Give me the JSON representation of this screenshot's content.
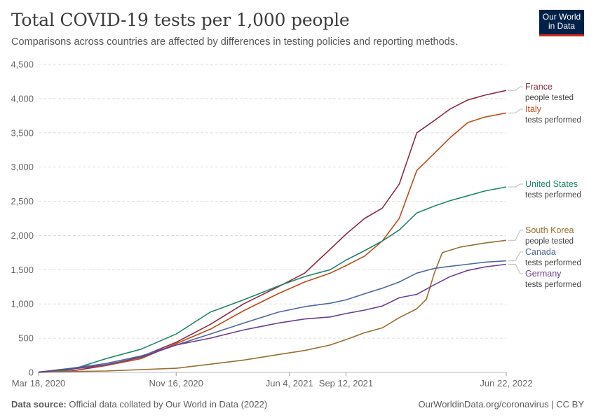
{
  "header": {
    "title": "Total COVID-19 tests per 1,000 people",
    "subtitle": "Comparisons across countries are affected by differences in testing policies and reporting methods."
  },
  "logo": {
    "line1": "Our World",
    "line2": "in Data",
    "bg": "#002147",
    "accent": "#ce261e"
  },
  "footer": {
    "source_label": "Data source:",
    "source_text": "Official data collated by Our World in Data (2022)",
    "credit": "OurWorldinData.org/coronavirus | CC BY"
  },
  "chart_data": {
    "type": "line",
    "xlabel": "",
    "ylabel": "",
    "ylim": [
      0,
      4500
    ],
    "yticks": [
      0,
      500,
      1000,
      1500,
      2000,
      2500,
      3000,
      3500,
      4000,
      4500
    ],
    "ytick_labels": [
      "0",
      "500",
      "1,000",
      "1,500",
      "2,000",
      "2,500",
      "3,000",
      "3,500",
      "4,000",
      "4,500"
    ],
    "xlim": [
      "2020-03-18",
      "2022-06-22"
    ],
    "xticks": [
      "2020-03-18",
      "2020-11-16",
      "2021-06-04",
      "2021-09-12",
      "2022-06-22"
    ],
    "xtick_labels": [
      "Mar 18, 2020",
      "Nov 16, 2020",
      "Jun 4, 2021",
      "Sep 12, 2021",
      "Jun 22, 2022"
    ],
    "grid": "horizontal dashed",
    "legend": "right, end labels",
    "series": [
      {
        "name": "France",
        "note": "people tested",
        "color": "#8c2c44",
        "points": [
          [
            "2020-03-18",
            0
          ],
          [
            "2020-05-15",
            20
          ],
          [
            "2020-07-15",
            100
          ],
          [
            "2020-09-15",
            230
          ],
          [
            "2020-11-16",
            440
          ],
          [
            "2021-01-15",
            700
          ],
          [
            "2021-03-15",
            1000
          ],
          [
            "2021-05-15",
            1250
          ],
          [
            "2021-07-01",
            1450
          ],
          [
            "2021-08-15",
            1800
          ],
          [
            "2021-09-12",
            2020
          ],
          [
            "2021-10-15",
            2250
          ],
          [
            "2021-11-15",
            2400
          ],
          [
            "2021-12-15",
            2750
          ],
          [
            "2022-01-15",
            3500
          ],
          [
            "2022-02-15",
            3680
          ],
          [
            "2022-03-15",
            3850
          ],
          [
            "2022-04-15",
            3980
          ],
          [
            "2022-05-15",
            4050
          ],
          [
            "2022-06-22",
            4120
          ]
        ]
      },
      {
        "name": "Italy",
        "note": "tests performed",
        "color": "#be4a15",
        "points": [
          [
            "2020-03-18",
            5
          ],
          [
            "2020-05-15",
            50
          ],
          [
            "2020-07-15",
            100
          ],
          [
            "2020-09-15",
            200
          ],
          [
            "2020-11-16",
            420
          ],
          [
            "2021-01-15",
            630
          ],
          [
            "2021-03-15",
            900
          ],
          [
            "2021-05-15",
            1150
          ],
          [
            "2021-07-01",
            1320
          ],
          [
            "2021-08-15",
            1450
          ],
          [
            "2021-09-12",
            1560
          ],
          [
            "2021-10-15",
            1700
          ],
          [
            "2021-11-15",
            1920
          ],
          [
            "2021-12-15",
            2250
          ],
          [
            "2022-01-15",
            2950
          ],
          [
            "2022-02-15",
            3200
          ],
          [
            "2022-03-15",
            3430
          ],
          [
            "2022-04-15",
            3650
          ],
          [
            "2022-05-15",
            3730
          ],
          [
            "2022-06-22",
            3790
          ]
        ]
      },
      {
        "name": "United States",
        "note": "tests performed",
        "color": "#1f8567",
        "points": [
          [
            "2020-03-18",
            0
          ],
          [
            "2020-05-15",
            40
          ],
          [
            "2020-07-15",
            200
          ],
          [
            "2020-09-15",
            340
          ],
          [
            "2020-11-16",
            560
          ],
          [
            "2021-01-15",
            880
          ],
          [
            "2021-03-15",
            1060
          ],
          [
            "2021-05-15",
            1260
          ],
          [
            "2021-07-01",
            1400
          ],
          [
            "2021-08-15",
            1500
          ],
          [
            "2021-09-12",
            1640
          ],
          [
            "2021-10-15",
            1780
          ],
          [
            "2021-11-15",
            1920
          ],
          [
            "2021-12-15",
            2080
          ],
          [
            "2022-01-15",
            2330
          ],
          [
            "2022-02-15",
            2430
          ],
          [
            "2022-03-15",
            2510
          ],
          [
            "2022-04-15",
            2580
          ],
          [
            "2022-05-15",
            2650
          ],
          [
            "2022-06-22",
            2710
          ]
        ]
      },
      {
        "name": "South Korea",
        "note": "people tested",
        "color": "#9b6d30",
        "points": [
          [
            "2020-03-18",
            5
          ],
          [
            "2020-07-15",
            20
          ],
          [
            "2020-11-16",
            60
          ],
          [
            "2021-01-15",
            120
          ],
          [
            "2021-03-15",
            180
          ],
          [
            "2021-05-15",
            260
          ],
          [
            "2021-07-01",
            320
          ],
          [
            "2021-08-15",
            400
          ],
          [
            "2021-09-12",
            480
          ],
          [
            "2021-10-15",
            580
          ],
          [
            "2021-11-15",
            650
          ],
          [
            "2021-12-15",
            800
          ],
          [
            "2022-01-15",
            930
          ],
          [
            "2022-02-01",
            1070
          ],
          [
            "2022-02-15",
            1450
          ],
          [
            "2022-03-01",
            1750
          ],
          [
            "2022-04-01",
            1830
          ],
          [
            "2022-05-15",
            1890
          ],
          [
            "2022-06-22",
            1930
          ]
        ]
      },
      {
        "name": "Canada",
        "note": "tests performed",
        "color": "#4c6a9c",
        "points": [
          [
            "2020-03-18",
            5
          ],
          [
            "2020-05-15",
            60
          ],
          [
            "2020-07-15",
            130
          ],
          [
            "2020-09-15",
            240
          ],
          [
            "2020-11-16",
            400
          ],
          [
            "2021-01-15",
            560
          ],
          [
            "2021-03-15",
            720
          ],
          [
            "2021-05-15",
            880
          ],
          [
            "2021-07-01",
            960
          ],
          [
            "2021-08-15",
            1010
          ],
          [
            "2021-09-12",
            1060
          ],
          [
            "2021-10-15",
            1150
          ],
          [
            "2021-11-15",
            1230
          ],
          [
            "2021-12-15",
            1320
          ],
          [
            "2022-01-15",
            1450
          ],
          [
            "2022-02-15",
            1520
          ],
          [
            "2022-03-15",
            1550
          ],
          [
            "2022-04-15",
            1580
          ],
          [
            "2022-05-15",
            1610
          ],
          [
            "2022-06-22",
            1630
          ]
        ]
      },
      {
        "name": "Germany",
        "note": "tests performed",
        "color": "#6d3e91",
        "points": [
          [
            "2020-03-18",
            5
          ],
          [
            "2020-05-15",
            50
          ],
          [
            "2020-07-15",
            110
          ],
          [
            "2020-09-15",
            220
          ],
          [
            "2020-11-16",
            400
          ],
          [
            "2021-01-15",
            500
          ],
          [
            "2021-03-15",
            620
          ],
          [
            "2021-05-15",
            720
          ],
          [
            "2021-07-01",
            780
          ],
          [
            "2021-08-15",
            810
          ],
          [
            "2021-09-12",
            860
          ],
          [
            "2021-10-15",
            910
          ],
          [
            "2021-11-15",
            970
          ],
          [
            "2021-12-15",
            1090
          ],
          [
            "2022-01-15",
            1140
          ],
          [
            "2022-02-15",
            1280
          ],
          [
            "2022-03-15",
            1400
          ],
          [
            "2022-04-15",
            1490
          ],
          [
            "2022-05-15",
            1540
          ],
          [
            "2022-06-22",
            1580
          ]
        ]
      }
    ]
  }
}
